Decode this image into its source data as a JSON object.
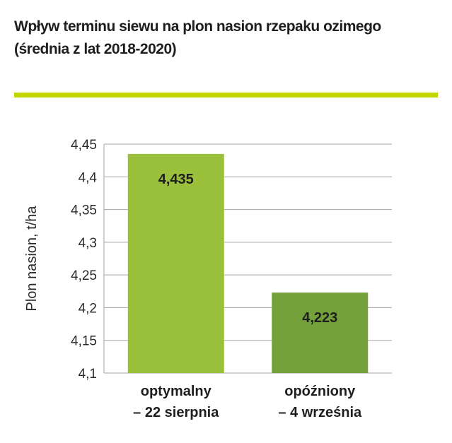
{
  "title_lines": [
    "Wpływ terminu siewu na plon nasion rzepaku ozimego",
    "(średnia z lat 2018-2020)"
  ],
  "accent_color": "#c4d600",
  "chart_data": {
    "type": "bar",
    "categories": [
      [
        "optymalny",
        "– 22 sierpnia"
      ],
      [
        "opóźniony",
        "– 4 września"
      ]
    ],
    "values": [
      4.435,
      4.223
    ],
    "value_labels": [
      "4,435",
      "4,223"
    ],
    "bar_colors": [
      "#9bc03b",
      "#74a13c"
    ],
    "ylabel": "Plon nasion, t/ha",
    "ylim": [
      4.1,
      4.45
    ],
    "yticks": [
      4.1,
      4.15,
      4.2,
      4.25,
      4.3,
      4.35,
      4.4,
      4.45
    ],
    "ytick_labels": [
      "4,1",
      "4,15",
      "4,2",
      "4,25",
      "4,3",
      "4,35",
      "4,4",
      "4,45"
    ],
    "grid": true
  }
}
